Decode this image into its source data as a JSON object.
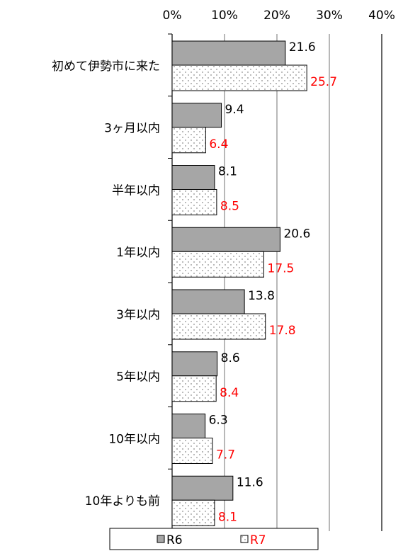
{
  "chart_data": {
    "type": "hbar",
    "categories": [
      "初めて伊勢市に来た",
      "3ヶ月以内",
      "半年以内",
      "1年以内",
      "3年以内",
      "5年以内",
      "10年以内",
      "10年よりも前"
    ],
    "series": [
      {
        "name": "R6",
        "color": "#a6a6a6",
        "label_color": "#000000",
        "values": [
          21.6,
          9.4,
          8.1,
          20.6,
          13.8,
          8.6,
          6.3,
          11.6
        ]
      },
      {
        "name": "R7",
        "color": "#ffffff",
        "label_color": "#ff0000",
        "values": [
          25.7,
          6.4,
          8.5,
          17.5,
          17.8,
          8.4,
          7.7,
          8.1
        ]
      }
    ],
    "xlim": [
      0,
      40
    ],
    "xticks": [
      {
        "value": 0,
        "label": "0%"
      },
      {
        "value": 10,
        "label": "10%"
      },
      {
        "value": 20,
        "label": "20%"
      },
      {
        "value": 30,
        "label": "30%"
      },
      {
        "value": 40,
        "label": "40%"
      }
    ],
    "grid": true,
    "legend": "bottom"
  }
}
